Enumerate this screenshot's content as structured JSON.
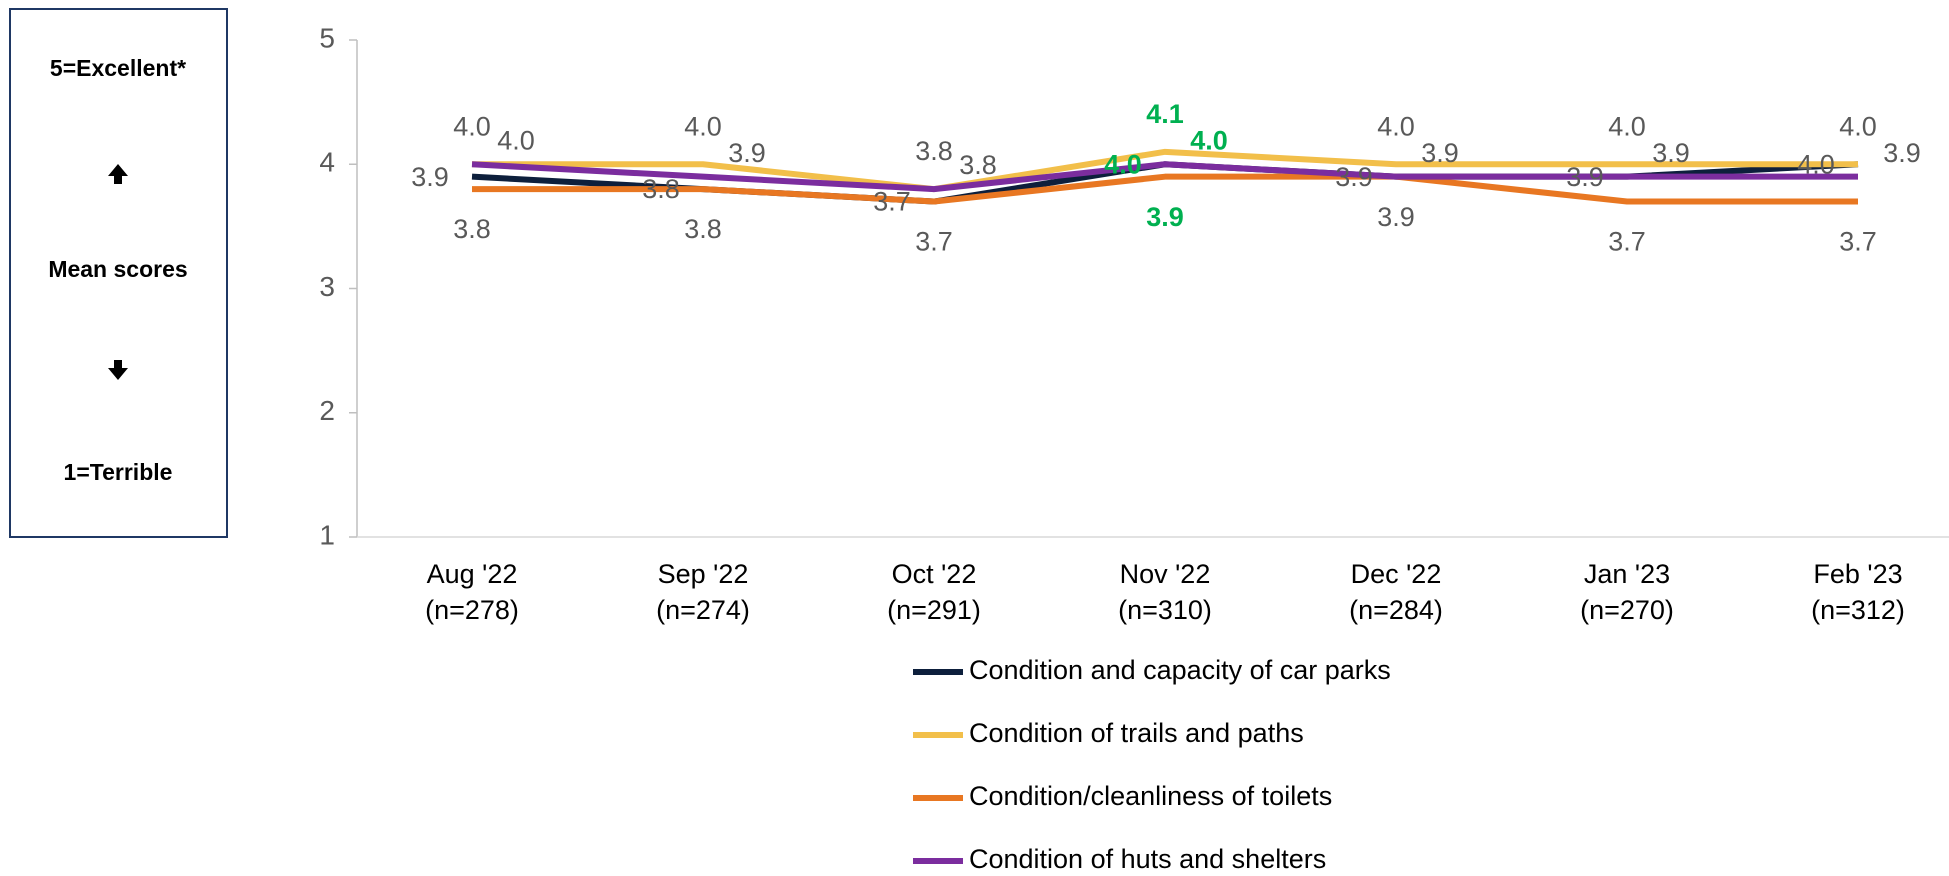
{
  "chart_data": {
    "type": "line",
    "side_labels": [
      "5=Excellent*",
      "Mean scores",
      "1=Terrible"
    ],
    "categories": [
      "Aug '22",
      "Sep '22",
      "Oct '22",
      "Nov '22",
      "Dec '22",
      "Jan '23",
      "Feb '23"
    ],
    "category_notes": [
      "(n=278)",
      "(n=274)",
      "(n=291)",
      "(n=310)",
      "(n=284)",
      "(n=270)",
      "(n=312)"
    ],
    "series": [
      {
        "name": "Condition and capacity of car parks",
        "color": "#0d1f3c",
        "values": [
          3.9,
          3.8,
          3.7,
          4.0,
          3.9,
          3.9,
          4.0
        ],
        "value_labels": [
          "3.9",
          "3.8",
          "3.7",
          "4.0",
          "3.9",
          "3.9",
          "4.0"
        ]
      },
      {
        "name": "Condition of trails and paths",
        "color": "#f2bf4a",
        "values": [
          4.0,
          4.0,
          3.8,
          4.1,
          4.0,
          4.0,
          4.0
        ],
        "value_labels": [
          "4.0",
          "4.0",
          "3.8",
          "4.1",
          "4.0",
          "4.0",
          "4.0"
        ]
      },
      {
        "name": "Condition/cleanliness of toilets",
        "color": "#e87722",
        "values": [
          3.8,
          3.8,
          3.7,
          3.9,
          3.9,
          3.7,
          3.7
        ],
        "value_labels": [
          "3.8",
          "3.8",
          "3.7",
          "3.9",
          "3.9",
          "3.7",
          "3.7"
        ]
      },
      {
        "name": "Condition of huts and shelters",
        "color": "#7b2d9e",
        "values": [
          4.0,
          3.9,
          3.8,
          4.0,
          3.9,
          3.9,
          3.9
        ],
        "value_labels": [
          "4.0",
          "3.9",
          "3.8",
          "4.0",
          "3.9",
          "3.9",
          "3.9"
        ]
      }
    ],
    "highlight": {
      "category": 3,
      "color": "#00b050"
    },
    "ylim": [
      1,
      5
    ],
    "yticks": [
      1,
      2,
      3,
      4,
      5
    ],
    "grid": false
  }
}
